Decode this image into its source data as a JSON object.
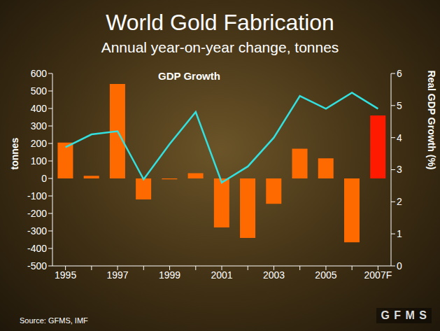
{
  "chart_data": {
    "type": "bar",
    "title": "World Gold Fabrication",
    "subtitle": "Annual year-on-year change, tonnes",
    "source": "Source: GFMS, IMF",
    "logo": "G F M S",
    "y_label": "tonnes",
    "y2_label": "Real GDP Growth (%)",
    "categories": [
      "1995",
      null,
      "1997",
      null,
      "1999",
      null,
      "2001",
      null,
      "2003",
      null,
      "2005",
      null,
      "2007F"
    ],
    "series": [
      {
        "type": "bar",
        "colors": [
          "#ff6a00",
          "#ff6a00",
          "#ff6a00",
          "#ff6a00",
          "#ff6a00",
          "#ff6a00",
          "#ff6a00",
          "#ff6a00",
          "#ff6a00",
          "#ff6a00",
          "#ff6a00",
          "#ff6a00",
          "#ff1a00"
        ],
        "values": [
          205,
          15,
          540,
          -120,
          -5,
          30,
          -280,
          -340,
          -145,
          170,
          115,
          -365,
          360
        ]
      },
      {
        "name": "GDP Growth",
        "type": "line",
        "color": "#33e0e0",
        "axis": "y2",
        "values": [
          3.7,
          4.1,
          4.2,
          2.7,
          3.8,
          4.8,
          2.6,
          3.1,
          4.0,
          5.3,
          4.9,
          5.4,
          4.9
        ]
      }
    ],
    "ylim": [
      -500,
      600
    ],
    "yticks": [
      -500,
      -400,
      -300,
      -200,
      -100,
      0,
      100,
      200,
      300,
      400,
      500,
      600
    ],
    "y2lim": [
      0,
      6
    ],
    "y2ticks": [
      0,
      1,
      2,
      3,
      4,
      5,
      6
    ],
    "grid": false
  }
}
